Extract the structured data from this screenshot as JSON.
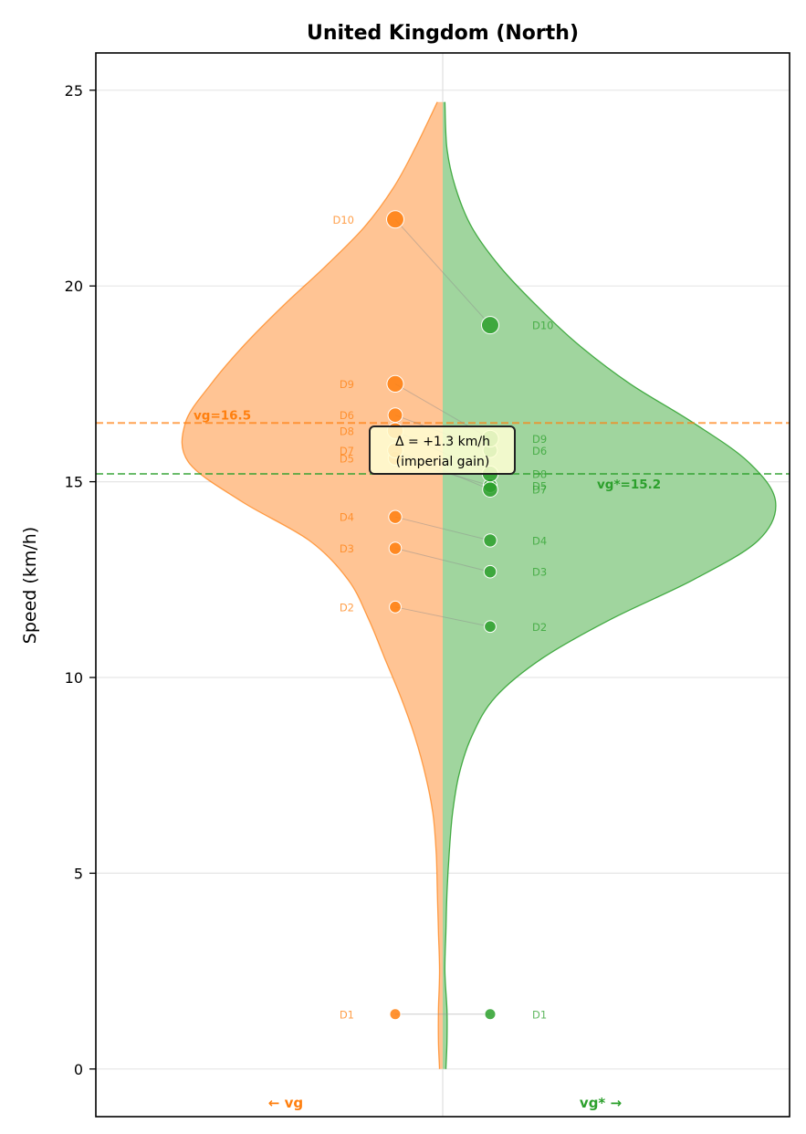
{
  "chart_data": {
    "type": "violin",
    "title": "United Kingdom (North)",
    "xlabel": "",
    "ylabel": "Speed (km/h)",
    "ylim": [
      -1.2,
      26
    ],
    "yticks": [
      0,
      5,
      10,
      15,
      20,
      25
    ],
    "ytick_labels": [
      "0",
      "5",
      "10",
      "15",
      "20",
      "25"
    ],
    "side_labels": {
      "left": "← vg",
      "right": "vg* →"
    },
    "series": [
      {
        "name": "vg",
        "side": "left",
        "color": "#ff7f0e",
        "fill": "#ffc494",
        "mean": 16.5,
        "mean_label": "vg=16.5",
        "deciles": [
          {
            "label": "D1",
            "value": 1.4
          },
          {
            "label": "D2",
            "value": 11.8
          },
          {
            "label": "D3",
            "value": 13.3
          },
          {
            "label": "D4",
            "value": 14.1
          },
          {
            "label": "D5",
            "value": 15.6
          },
          {
            "label": "D6",
            "value": 16.7
          },
          {
            "label": "D7",
            "value": 15.8
          },
          {
            "label": "D8",
            "value": 16.3
          },
          {
            "label": "D9",
            "value": 17.5
          },
          {
            "label": "D10",
            "value": 21.7
          }
        ]
      },
      {
        "name": "vg*",
        "side": "right",
        "color": "#2ca02c",
        "fill": "#a0d59e",
        "mean": 15.2,
        "mean_label": "vg*=15.2",
        "deciles": [
          {
            "label": "D1",
            "value": 1.4
          },
          {
            "label": "D2",
            "value": 11.3
          },
          {
            "label": "D3",
            "value": 12.7
          },
          {
            "label": "D4",
            "value": 13.5
          },
          {
            "label": "D5",
            "value": 14.9
          },
          {
            "label": "D6",
            "value": 15.8
          },
          {
            "label": "D7",
            "value": 14.8
          },
          {
            "label": "D8",
            "value": 15.2
          },
          {
            "label": "D9",
            "value": 16.1
          },
          {
            "label": "D10",
            "value": 19.0
          }
        ]
      }
    ],
    "annotation": {
      "line1": "Δ = +1.3 km/h",
      "line2": "(imperial gain)",
      "y": 15.9
    },
    "density_profile": {
      "y": [
        0,
        0.7,
        1.5,
        2.5,
        3.5,
        4.5,
        5.5,
        6.5,
        7.5,
        8.5,
        9.5,
        10.5,
        11.5,
        12.5,
        13.5,
        14.5,
        15.5,
        16.5,
        17.5,
        18.5,
        19.5,
        20.5,
        21.5,
        22.5,
        23.5,
        24.7
      ],
      "vg": [
        0.03,
        0.04,
        0.04,
        0.03,
        0.04,
        0.05,
        0.06,
        0.09,
        0.16,
        0.26,
        0.39,
        0.54,
        0.69,
        0.88,
        1.24,
        1.87,
        2.36,
        2.39,
        2.15,
        1.84,
        1.48,
        1.09,
        0.73,
        0.46,
        0.26,
        0.05
      ],
      "vgstar": [
        0.03,
        0.04,
        0.04,
        0.02,
        0.03,
        0.04,
        0.06,
        0.09,
        0.15,
        0.27,
        0.49,
        0.93,
        1.57,
        2.33,
        2.93,
        3.09,
        2.84,
        2.33,
        1.74,
        1.26,
        0.87,
        0.53,
        0.27,
        0.12,
        0.04,
        0.02
      ]
    }
  }
}
